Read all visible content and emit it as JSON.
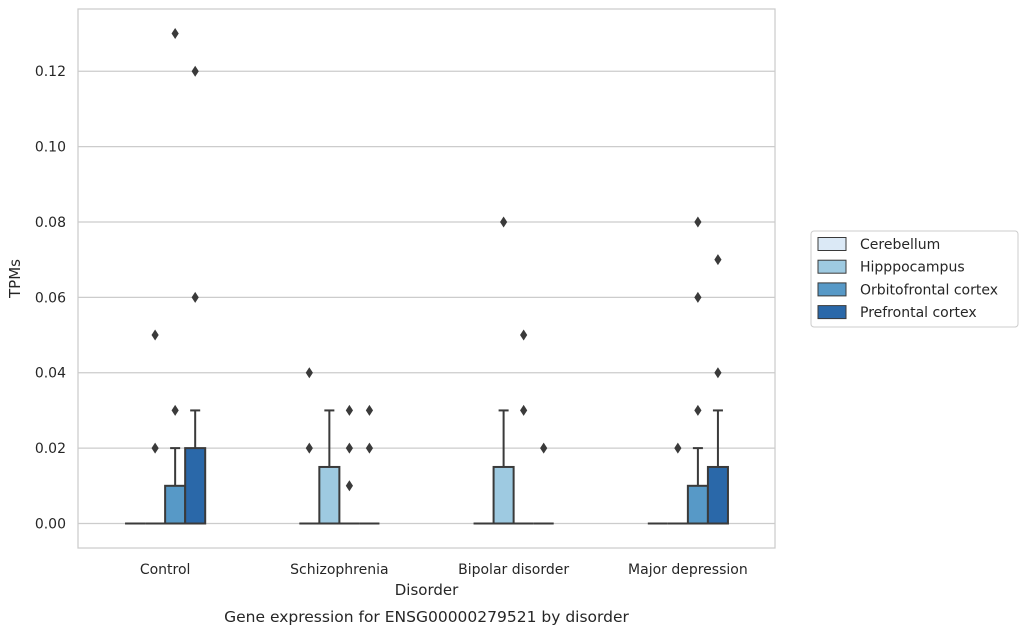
{
  "chart_data": {
    "type": "box",
    "title": "",
    "caption": "Gene expression for ENSG00000279521 by disorder",
    "xlabel": "Disorder",
    "ylabel": "TPMs",
    "ylim": [
      -0.0065,
      0.1365
    ],
    "yticks": [
      "0.00",
      "0.02",
      "0.04",
      "0.06",
      "0.08",
      "0.10",
      "0.12"
    ],
    "ytick_values": [
      0,
      0.02,
      0.04,
      0.06,
      0.08,
      0.1,
      0.12
    ],
    "grid": "horizontal",
    "legend_position": "right",
    "categories": [
      "Control",
      "Schizophrenia",
      "Bipolar disorder",
      "Major depression"
    ],
    "series": [
      {
        "name": "Cerebellum",
        "color": "#dbe9f6",
        "boxes": [
          {
            "q1": 0,
            "median": 0,
            "q3": 0,
            "whisker_low": 0,
            "whisker_high": 0,
            "outliers": []
          },
          {
            "q1": 0,
            "median": 0,
            "q3": 0,
            "whisker_low": 0,
            "whisker_high": 0,
            "outliers": [
              0.02,
              0.04
            ]
          },
          {
            "q1": 0,
            "median": 0,
            "q3": 0,
            "whisker_low": 0,
            "whisker_high": 0,
            "outliers": []
          },
          {
            "q1": 0,
            "median": 0,
            "q3": 0,
            "whisker_low": 0,
            "whisker_high": 0,
            "outliers": []
          }
        ]
      },
      {
        "name": "Hipppocampus",
        "color": "#9ecae1",
        "boxes": [
          {
            "q1": 0,
            "median": 0,
            "q3": 0,
            "whisker_low": 0,
            "whisker_high": 0,
            "outliers": [
              0.02,
              0.05
            ]
          },
          {
            "q1": 0,
            "median": 0,
            "q3": 0.015,
            "whisker_low": 0,
            "whisker_high": 0.03,
            "outliers": []
          },
          {
            "q1": 0,
            "median": 0,
            "q3": 0.015,
            "whisker_low": 0,
            "whisker_high": 0.03,
            "outliers": [
              0.08
            ]
          },
          {
            "q1": 0,
            "median": 0,
            "q3": 0,
            "whisker_low": 0,
            "whisker_high": 0,
            "outliers": [
              0.02
            ]
          }
        ]
      },
      {
        "name": "Orbitofrontal cortex",
        "color": "#5799c7",
        "boxes": [
          {
            "q1": 0,
            "median": 0,
            "q3": 0.01,
            "whisker_low": 0,
            "whisker_high": 0.02,
            "outliers": [
              0.03,
              0.13
            ]
          },
          {
            "q1": 0,
            "median": 0,
            "q3": 0,
            "whisker_low": 0,
            "whisker_high": 0,
            "outliers": [
              0.01,
              0.02,
              0.03
            ]
          },
          {
            "q1": 0,
            "median": 0,
            "q3": 0,
            "whisker_low": 0,
            "whisker_high": 0,
            "outliers": [
              0.03,
              0.05
            ]
          },
          {
            "q1": 0,
            "median": 0,
            "q3": 0.01,
            "whisker_low": 0,
            "whisker_high": 0.02,
            "outliers": [
              0.03,
              0.06,
              0.08
            ]
          }
        ]
      },
      {
        "name": "Prefrontal cortex",
        "color": "#2a68a9",
        "boxes": [
          {
            "q1": 0,
            "median": 0,
            "q3": 0.02,
            "whisker_low": 0,
            "whisker_high": 0.03,
            "outliers": [
              0.06,
              0.12
            ]
          },
          {
            "q1": 0,
            "median": 0,
            "q3": 0,
            "whisker_low": 0,
            "whisker_high": 0,
            "outliers": [
              0.02,
              0.03
            ]
          },
          {
            "q1": 0,
            "median": 0,
            "q3": 0,
            "whisker_low": 0,
            "whisker_high": 0,
            "outliers": [
              0.02
            ]
          },
          {
            "q1": 0,
            "median": 0,
            "q3": 0.015,
            "whisker_low": 0,
            "whisker_high": 0.03,
            "outliers": [
              0.04,
              0.07
            ]
          }
        ]
      }
    ]
  }
}
